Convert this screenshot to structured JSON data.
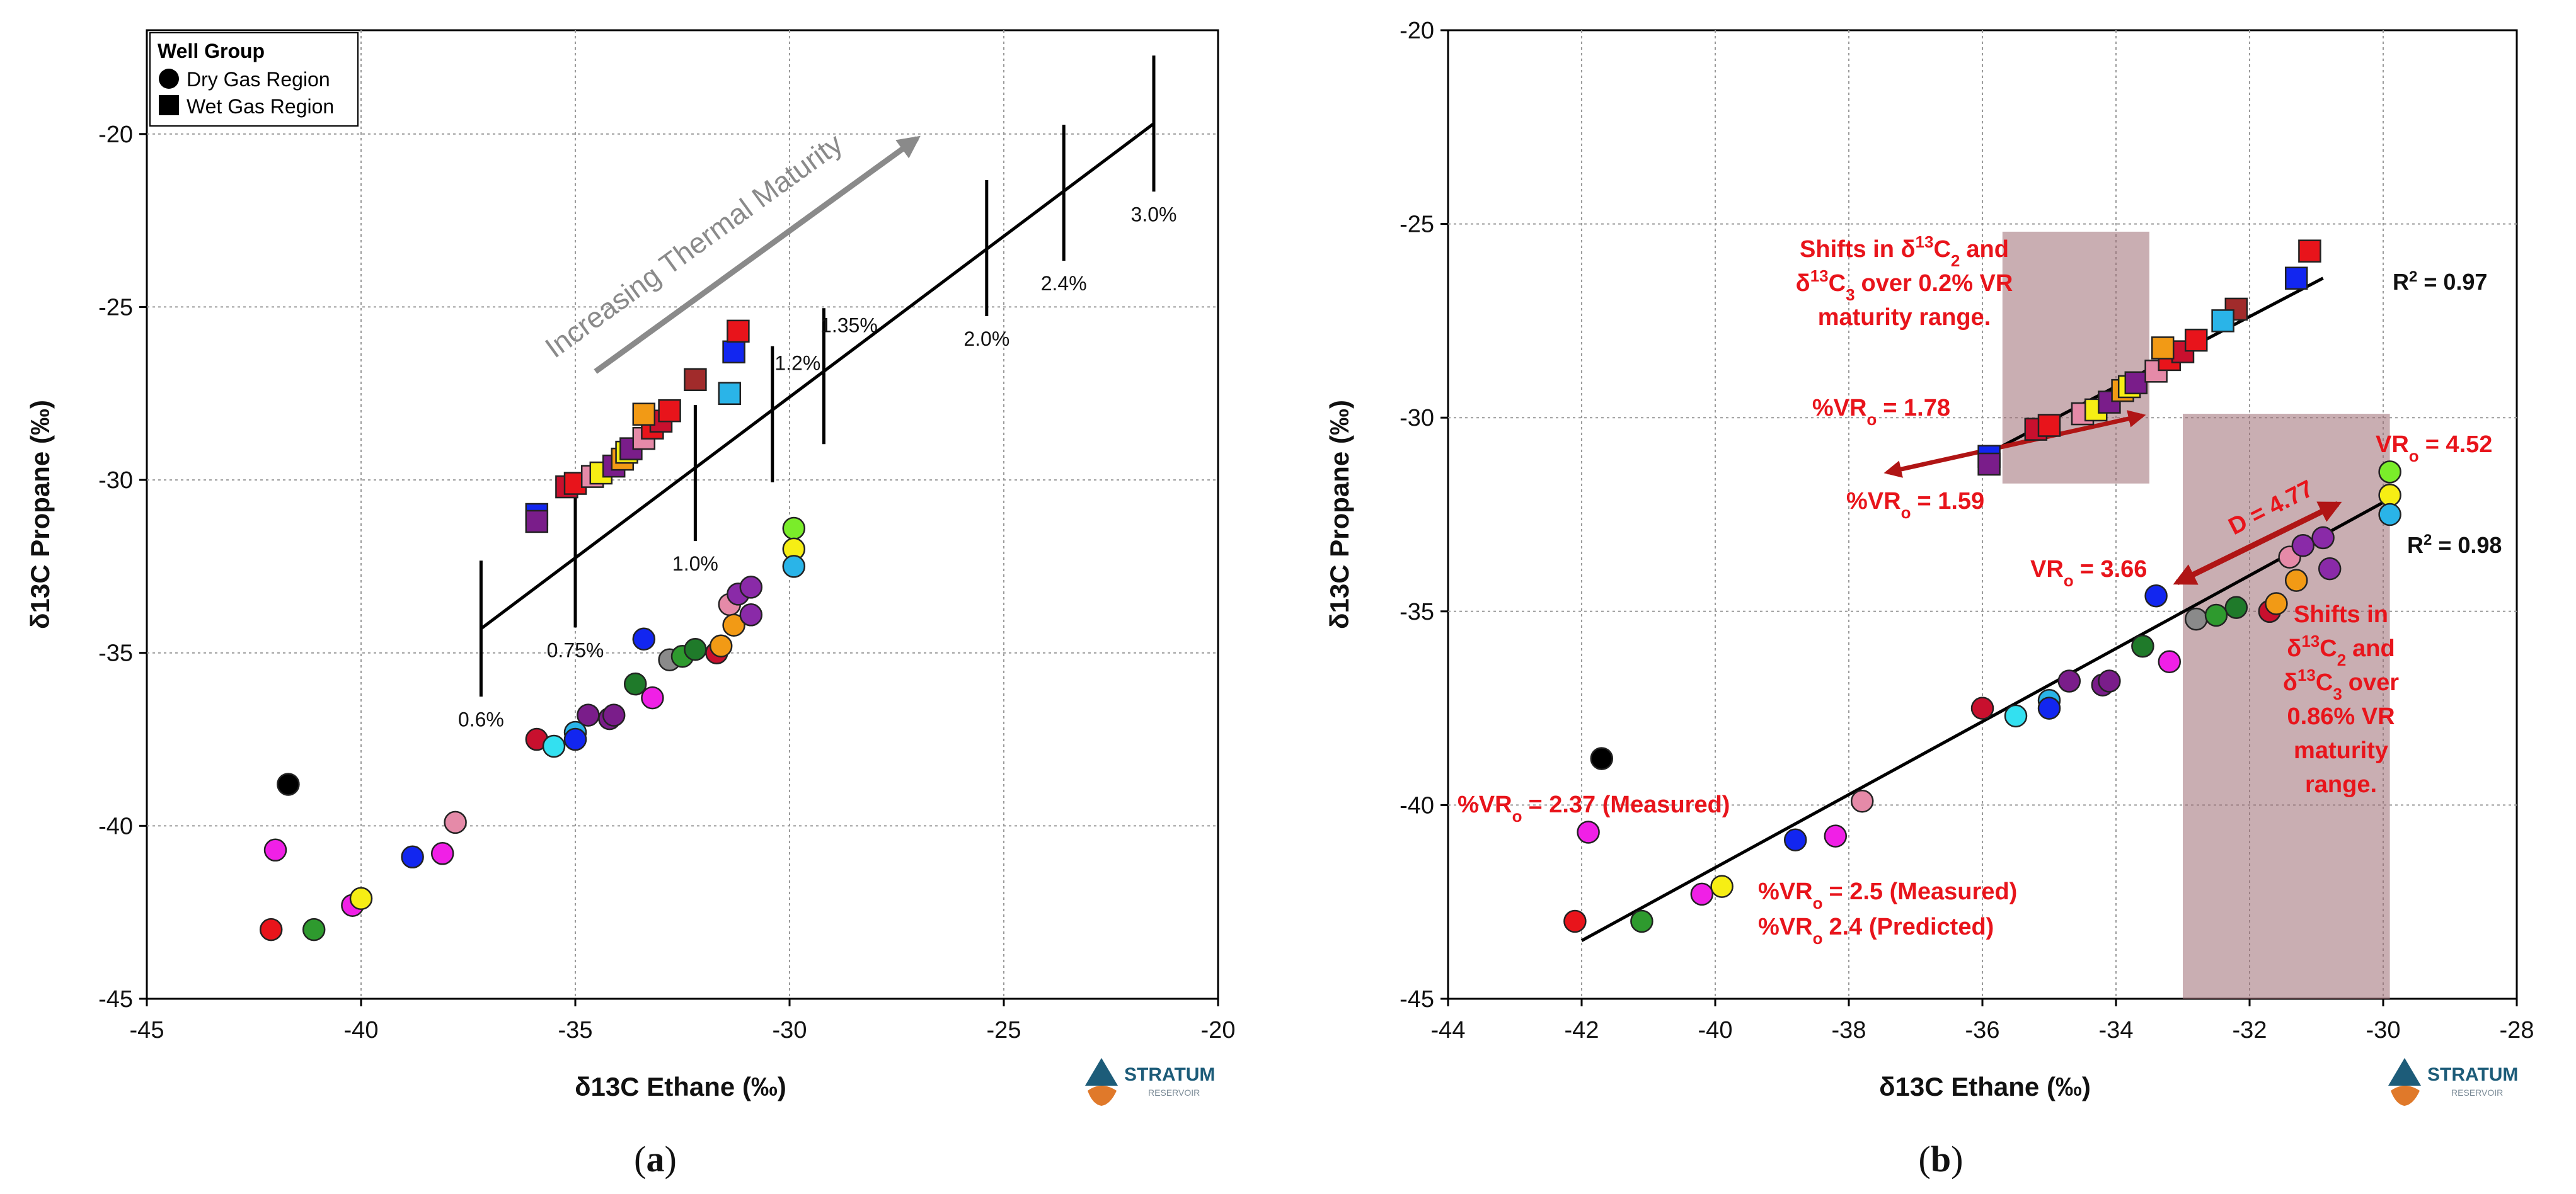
{
  "colors": {
    "red": "#e8141b",
    "crimson": "#c8102e",
    "dkred": "#a12b2b",
    "blue": "#1226f0",
    "cyan": "#2ab4e8",
    "ltcyan": "#33e0f0",
    "green": "#2e9a2e",
    "dkgreen": "#1f7a2a",
    "lime": "#7aed2a",
    "yellow": "#f6ee14",
    "orange": "#f29a15",
    "pink": "#e58aa8",
    "magenta": "#f020e6",
    "purple": "#7a1d8a",
    "violet": "#8a2aa8",
    "gray": "#8a8a8a",
    "black": "#000000",
    "box": "#9c6b72"
  },
  "panel_a_label": "a",
  "panel_b_label": "b",
  "logo": {
    "name": "STRATUM",
    "sub": "RESERVOIR"
  },
  "chart_data": [
    {
      "type": "scatter",
      "panel": "a",
      "xlabel": "δ13C Ethane (‰)",
      "ylabel": "δ13C Propane (‰)",
      "xlim": [
        -45,
        -20
      ],
      "ylim": [
        -45,
        -17
      ],
      "xticks": [
        -45,
        -40,
        -35,
        -30,
        -25,
        -20
      ],
      "yticks": [
        -45,
        -40,
        -35,
        -30,
        -25,
        -20
      ],
      "legend": {
        "title": "Well Group",
        "entries": [
          "Dry Gas Region",
          "Wet Gas Region"
        ],
        "position": "top-left"
      },
      "arrow_label": "Increasing Thermal Maturity",
      "maturity_line": {
        "from": [
          -37.2,
          -34.3
        ],
        "to": [
          -21.5,
          -19.7
        ]
      },
      "vr_marks": [
        {
          "x": -37.2,
          "y": -34.3,
          "label": "0.6%"
        },
        {
          "x": -35.0,
          "y": -32.3,
          "label": "0.75%"
        },
        {
          "x": -32.2,
          "y": -29.8,
          "label": "1.0%"
        },
        {
          "x": -30.4,
          "y": -28.1,
          "label": "1.2%"
        },
        {
          "x": -29.2,
          "y": -27.0,
          "label": "1.35%"
        },
        {
          "x": -25.4,
          "y": -23.3,
          "label": "2.0%"
        },
        {
          "x": -23.6,
          "y": -21.7,
          "label": "2.4%"
        },
        {
          "x": -21.5,
          "y": -19.7,
          "label": "3.0%"
        }
      ],
      "squares": [
        {
          "x": -35.9,
          "y": -31.0,
          "c": "blue"
        },
        {
          "x": -35.9,
          "y": -31.2,
          "c": "purple"
        },
        {
          "x": -35.2,
          "y": -30.2,
          "c": "crimson"
        },
        {
          "x": -35.0,
          "y": -30.1,
          "c": "red"
        },
        {
          "x": -34.6,
          "y": -29.9,
          "c": "pink"
        },
        {
          "x": -34.4,
          "y": -29.8,
          "c": "yellow"
        },
        {
          "x": -34.1,
          "y": -29.6,
          "c": "purple"
        },
        {
          "x": -33.9,
          "y": -29.4,
          "c": "orange"
        },
        {
          "x": -33.8,
          "y": -29.2,
          "c": "yellow"
        },
        {
          "x": -33.7,
          "y": -29.1,
          "c": "purple"
        },
        {
          "x": -33.4,
          "y": -28.8,
          "c": "pink"
        },
        {
          "x": -33.2,
          "y": -28.5,
          "c": "red"
        },
        {
          "x": -33.0,
          "y": -28.3,
          "c": "crimson"
        },
        {
          "x": -33.4,
          "y": -28.1,
          "c": "orange"
        },
        {
          "x": -32.8,
          "y": -28.0,
          "c": "red"
        },
        {
          "x": -32.2,
          "y": -27.1,
          "c": "dkred"
        },
        {
          "x": -31.4,
          "y": -27.5,
          "c": "cyan"
        },
        {
          "x": -31.3,
          "y": -26.3,
          "c": "blue"
        },
        {
          "x": -31.2,
          "y": -25.7,
          "c": "red"
        }
      ],
      "circles": [
        {
          "x": -41.7,
          "y": -38.8,
          "c": "black"
        },
        {
          "x": -42.0,
          "y": -40.7,
          "c": "magenta"
        },
        {
          "x": -42.1,
          "y": -43.0,
          "c": "red"
        },
        {
          "x": -41.1,
          "y": -43.0,
          "c": "green"
        },
        {
          "x": -40.2,
          "y": -42.3,
          "c": "magenta"
        },
        {
          "x": -40.0,
          "y": -42.1,
          "c": "yellow"
        },
        {
          "x": -38.8,
          "y": -40.9,
          "c": "blue"
        },
        {
          "x": -38.1,
          "y": -40.8,
          "c": "magenta"
        },
        {
          "x": -37.8,
          "y": -39.9,
          "c": "pink"
        },
        {
          "x": -35.9,
          "y": -37.5,
          "c": "crimson"
        },
        {
          "x": -35.5,
          "y": -37.7,
          "c": "ltcyan"
        },
        {
          "x": -35.0,
          "y": -37.3,
          "c": "cyan"
        },
        {
          "x": -35.0,
          "y": -37.5,
          "c": "blue"
        },
        {
          "x": -34.7,
          "y": -36.8,
          "c": "purple"
        },
        {
          "x": -34.2,
          "y": -36.9,
          "c": "purple"
        },
        {
          "x": -34.1,
          "y": -36.8,
          "c": "purple"
        },
        {
          "x": -33.6,
          "y": -35.9,
          "c": "dkgreen"
        },
        {
          "x": -33.4,
          "y": -34.6,
          "c": "blue"
        },
        {
          "x": -33.2,
          "y": -36.3,
          "c": "magenta"
        },
        {
          "x": -32.8,
          "y": -35.2,
          "c": "gray"
        },
        {
          "x": -32.5,
          "y": -35.1,
          "c": "green"
        },
        {
          "x": -32.2,
          "y": -34.9,
          "c": "dkgreen"
        },
        {
          "x": -31.7,
          "y": -35.0,
          "c": "crimson"
        },
        {
          "x": -31.6,
          "y": -34.8,
          "c": "orange"
        },
        {
          "x": -31.4,
          "y": -33.6,
          "c": "pink"
        },
        {
          "x": -31.3,
          "y": -34.2,
          "c": "orange"
        },
        {
          "x": -31.2,
          "y": -33.3,
          "c": "violet"
        },
        {
          "x": -30.9,
          "y": -33.1,
          "c": "violet"
        },
        {
          "x": -30.9,
          "y": -33.9,
          "c": "violet"
        },
        {
          "x": -29.9,
          "y": -31.4,
          "c": "lime"
        },
        {
          "x": -29.9,
          "y": -32.0,
          "c": "yellow"
        },
        {
          "x": -29.9,
          "y": -32.5,
          "c": "cyan"
        }
      ]
    },
    {
      "type": "scatter",
      "panel": "b",
      "xlabel": "δ13C Ethane (‰)",
      "ylabel": "δ13C Propane (‰)",
      "xlim": [
        -44,
        -28
      ],
      "ylim": [
        -45,
        -20
      ],
      "xticks": [
        -44,
        -42,
        -40,
        -38,
        -36,
        -34,
        -32,
        -30,
        -28
      ],
      "yticks": [
        -45,
        -40,
        -35,
        -30,
        -25,
        -20
      ],
      "fit_lines": [
        {
          "from": [
            -36.0,
            -31.0
          ],
          "to": [
            -30.9,
            -26.4
          ],
          "r2_label": "R",
          "r2_value": "= 0.97"
        },
        {
          "from": [
            -42.0,
            -43.5
          ],
          "to": [
            -29.8,
            -32.0
          ],
          "r2_label": "R",
          "r2_value": "= 0.98"
        }
      ],
      "shade_boxes": [
        {
          "x": [
            -35.7,
            -33.5
          ],
          "y": [
            -31.7,
            -25.2
          ]
        },
        {
          "x": [
            -33.0,
            -29.9
          ],
          "y": [
            -45.0,
            -29.9
          ]
        }
      ],
      "annotations": {
        "shift1_a": "Shifts in δ",
        "shift1_b": "C",
        "shift1_c": "and",
        "shift1_d": "δ",
        "shift1_e": "C",
        "shift1_f": "over 0.2% VR",
        "shift1_g": "maturity range.",
        "shift2_a": "Shifts in",
        "shift2_b": "δ",
        "shift2_c": "C",
        "shift2_d": "and",
        "shift2_e": "δ",
        "shift2_f": "C",
        "shift2_g": "over",
        "shift2_h": "0.86% VR",
        "shift2_i": "maturity",
        "shift2_j": "range.",
        "vr178": "%VR",
        "vr178v": "= 1.78",
        "vr159": "%VR",
        "vr159v": "= 1.59",
        "vr452": "VR",
        "vr452v": "= 4.52",
        "vr366": "VR",
        "vr366v": "= 3.66",
        "d477": "D = 4.77",
        "vr237": "%VR",
        "vr237v": "= 2.37 (Measured)",
        "vr25": "%VR",
        "vr25v": "= 2.5 (Measured)",
        "vr24": "%VR",
        "vr24v": "2.4 (Predicted)",
        "sup13": "13",
        "sub2": "2",
        "sub3": "3",
        "subo": "o",
        "sup2": "2"
      },
      "squares": [
        {
          "x": -35.9,
          "y": -31.0,
          "c": "blue"
        },
        {
          "x": -35.9,
          "y": -31.2,
          "c": "purple"
        },
        {
          "x": -35.2,
          "y": -30.3,
          "c": "crimson"
        },
        {
          "x": -35.0,
          "y": -30.2,
          "c": "red"
        },
        {
          "x": -34.5,
          "y": -29.9,
          "c": "pink"
        },
        {
          "x": -34.3,
          "y": -29.8,
          "c": "yellow"
        },
        {
          "x": -34.1,
          "y": -29.6,
          "c": "purple"
        },
        {
          "x": -33.9,
          "y": -29.3,
          "c": "orange"
        },
        {
          "x": -33.8,
          "y": -29.2,
          "c": "yellow"
        },
        {
          "x": -33.7,
          "y": -29.1,
          "c": "purple"
        },
        {
          "x": -33.4,
          "y": -28.8,
          "c": "pink"
        },
        {
          "x": -33.2,
          "y": -28.5,
          "c": "red"
        },
        {
          "x": -33.0,
          "y": -28.3,
          "c": "crimson"
        },
        {
          "x": -33.3,
          "y": -28.2,
          "c": "orange"
        },
        {
          "x": -32.8,
          "y": -28.0,
          "c": "red"
        },
        {
          "x": -32.2,
          "y": -27.2,
          "c": "dkred"
        },
        {
          "x": -32.4,
          "y": -27.5,
          "c": "cyan"
        },
        {
          "x": -31.3,
          "y": -26.4,
          "c": "blue"
        },
        {
          "x": -31.1,
          "y": -25.7,
          "c": "red"
        }
      ],
      "circles": [
        {
          "x": -41.7,
          "y": -38.8,
          "c": "black"
        },
        {
          "x": -41.9,
          "y": -40.7,
          "c": "magenta"
        },
        {
          "x": -42.1,
          "y": -43.0,
          "c": "red"
        },
        {
          "x": -41.1,
          "y": -43.0,
          "c": "green"
        },
        {
          "x": -40.2,
          "y": -42.3,
          "c": "magenta"
        },
        {
          "x": -39.9,
          "y": -42.1,
          "c": "yellow"
        },
        {
          "x": -38.8,
          "y": -40.9,
          "c": "blue"
        },
        {
          "x": -38.2,
          "y": -40.8,
          "c": "magenta"
        },
        {
          "x": -37.8,
          "y": -39.9,
          "c": "pink"
        },
        {
          "x": -36.0,
          "y": -37.5,
          "c": "crimson"
        },
        {
          "x": -35.5,
          "y": -37.7,
          "c": "ltcyan"
        },
        {
          "x": -35.0,
          "y": -37.3,
          "c": "cyan"
        },
        {
          "x": -35.0,
          "y": -37.5,
          "c": "blue"
        },
        {
          "x": -34.7,
          "y": -36.8,
          "c": "purple"
        },
        {
          "x": -34.2,
          "y": -36.9,
          "c": "purple"
        },
        {
          "x": -34.1,
          "y": -36.8,
          "c": "purple"
        },
        {
          "x": -33.6,
          "y": -35.9,
          "c": "dkgreen"
        },
        {
          "x": -33.4,
          "y": -34.6,
          "c": "blue"
        },
        {
          "x": -33.2,
          "y": -36.3,
          "c": "magenta"
        },
        {
          "x": -32.8,
          "y": -35.2,
          "c": "gray"
        },
        {
          "x": -32.5,
          "y": -35.1,
          "c": "green"
        },
        {
          "x": -32.2,
          "y": -34.9,
          "c": "dkgreen"
        },
        {
          "x": -31.7,
          "y": -35.0,
          "c": "crimson"
        },
        {
          "x": -31.6,
          "y": -34.8,
          "c": "orange"
        },
        {
          "x": -31.4,
          "y": -33.6,
          "c": "pink"
        },
        {
          "x": -31.3,
          "y": -34.2,
          "c": "orange"
        },
        {
          "x": -31.2,
          "y": -33.3,
          "c": "violet"
        },
        {
          "x": -30.9,
          "y": -33.1,
          "c": "violet"
        },
        {
          "x": -30.8,
          "y": -33.9,
          "c": "violet"
        },
        {
          "x": -29.9,
          "y": -31.4,
          "c": "lime"
        },
        {
          "x": -29.9,
          "y": -32.0,
          "c": "yellow"
        },
        {
          "x": -29.9,
          "y": -32.5,
          "c": "cyan"
        }
      ]
    }
  ]
}
